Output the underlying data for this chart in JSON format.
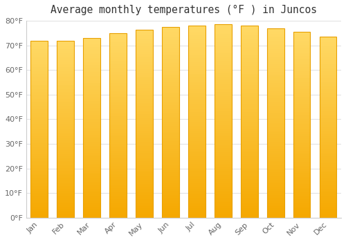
{
  "title": "Average monthly temperatures (°F ) in Juncos",
  "months": [
    "Jan",
    "Feb",
    "Mar",
    "Apr",
    "May",
    "Jun",
    "Jul",
    "Aug",
    "Sep",
    "Oct",
    "Nov",
    "Dec"
  ],
  "values": [
    72,
    72,
    73,
    75,
    76.5,
    77.5,
    78,
    78.5,
    78,
    77,
    75.5,
    73.5
  ],
  "bar_color_bottom": "#F5A800",
  "bar_color_top": "#FFD966",
  "bar_edge_color": "#E8A000",
  "background_color": "#FFFFFF",
  "ylim": [
    0,
    80
  ],
  "yticks": [
    0,
    10,
    20,
    30,
    40,
    50,
    60,
    70,
    80
  ],
  "ytick_labels": [
    "0°F",
    "10°F",
    "20°F",
    "30°F",
    "40°F",
    "50°F",
    "60°F",
    "70°F",
    "80°F"
  ],
  "title_fontsize": 10.5,
  "tick_fontsize": 8,
  "grid_color": "#e0e0e0",
  "tick_color": "#666666"
}
